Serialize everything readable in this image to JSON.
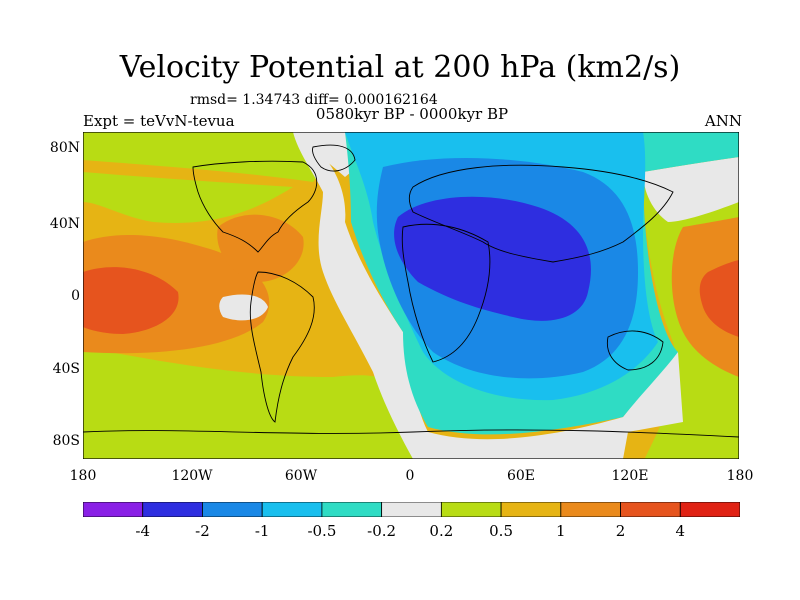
{
  "title": "Velocity Potential at 200 hPa (km2/s)",
  "stats": "rmsd= 1.34743 diff= 0.000162164",
  "experiment": "Expt = teVvN-tevua",
  "period": "0580kyr BP - 0000kyr BP",
  "season": "ANN",
  "lat_ticks": [
    "80N",
    "40N",
    "0",
    "40S",
    "80S"
  ],
  "lon_ticks": [
    "180",
    "120W",
    "60W",
    "0",
    "60E",
    "120E",
    "180"
  ],
  "colorbar": {
    "labels": [
      "-4",
      "-2",
      "-1",
      "-0.5",
      "-0.2",
      "0.2",
      "0.5",
      "1",
      "2",
      "4"
    ],
    "colors": [
      "#8a20e6",
      "#2e2ee0",
      "#1a88e6",
      "#19bfee",
      "#2fdcc4",
      "#e8e8e8",
      "#b8dc14",
      "#e6b414",
      "#ea8a1c",
      "#e6541e",
      "#e02214"
    ]
  }
}
